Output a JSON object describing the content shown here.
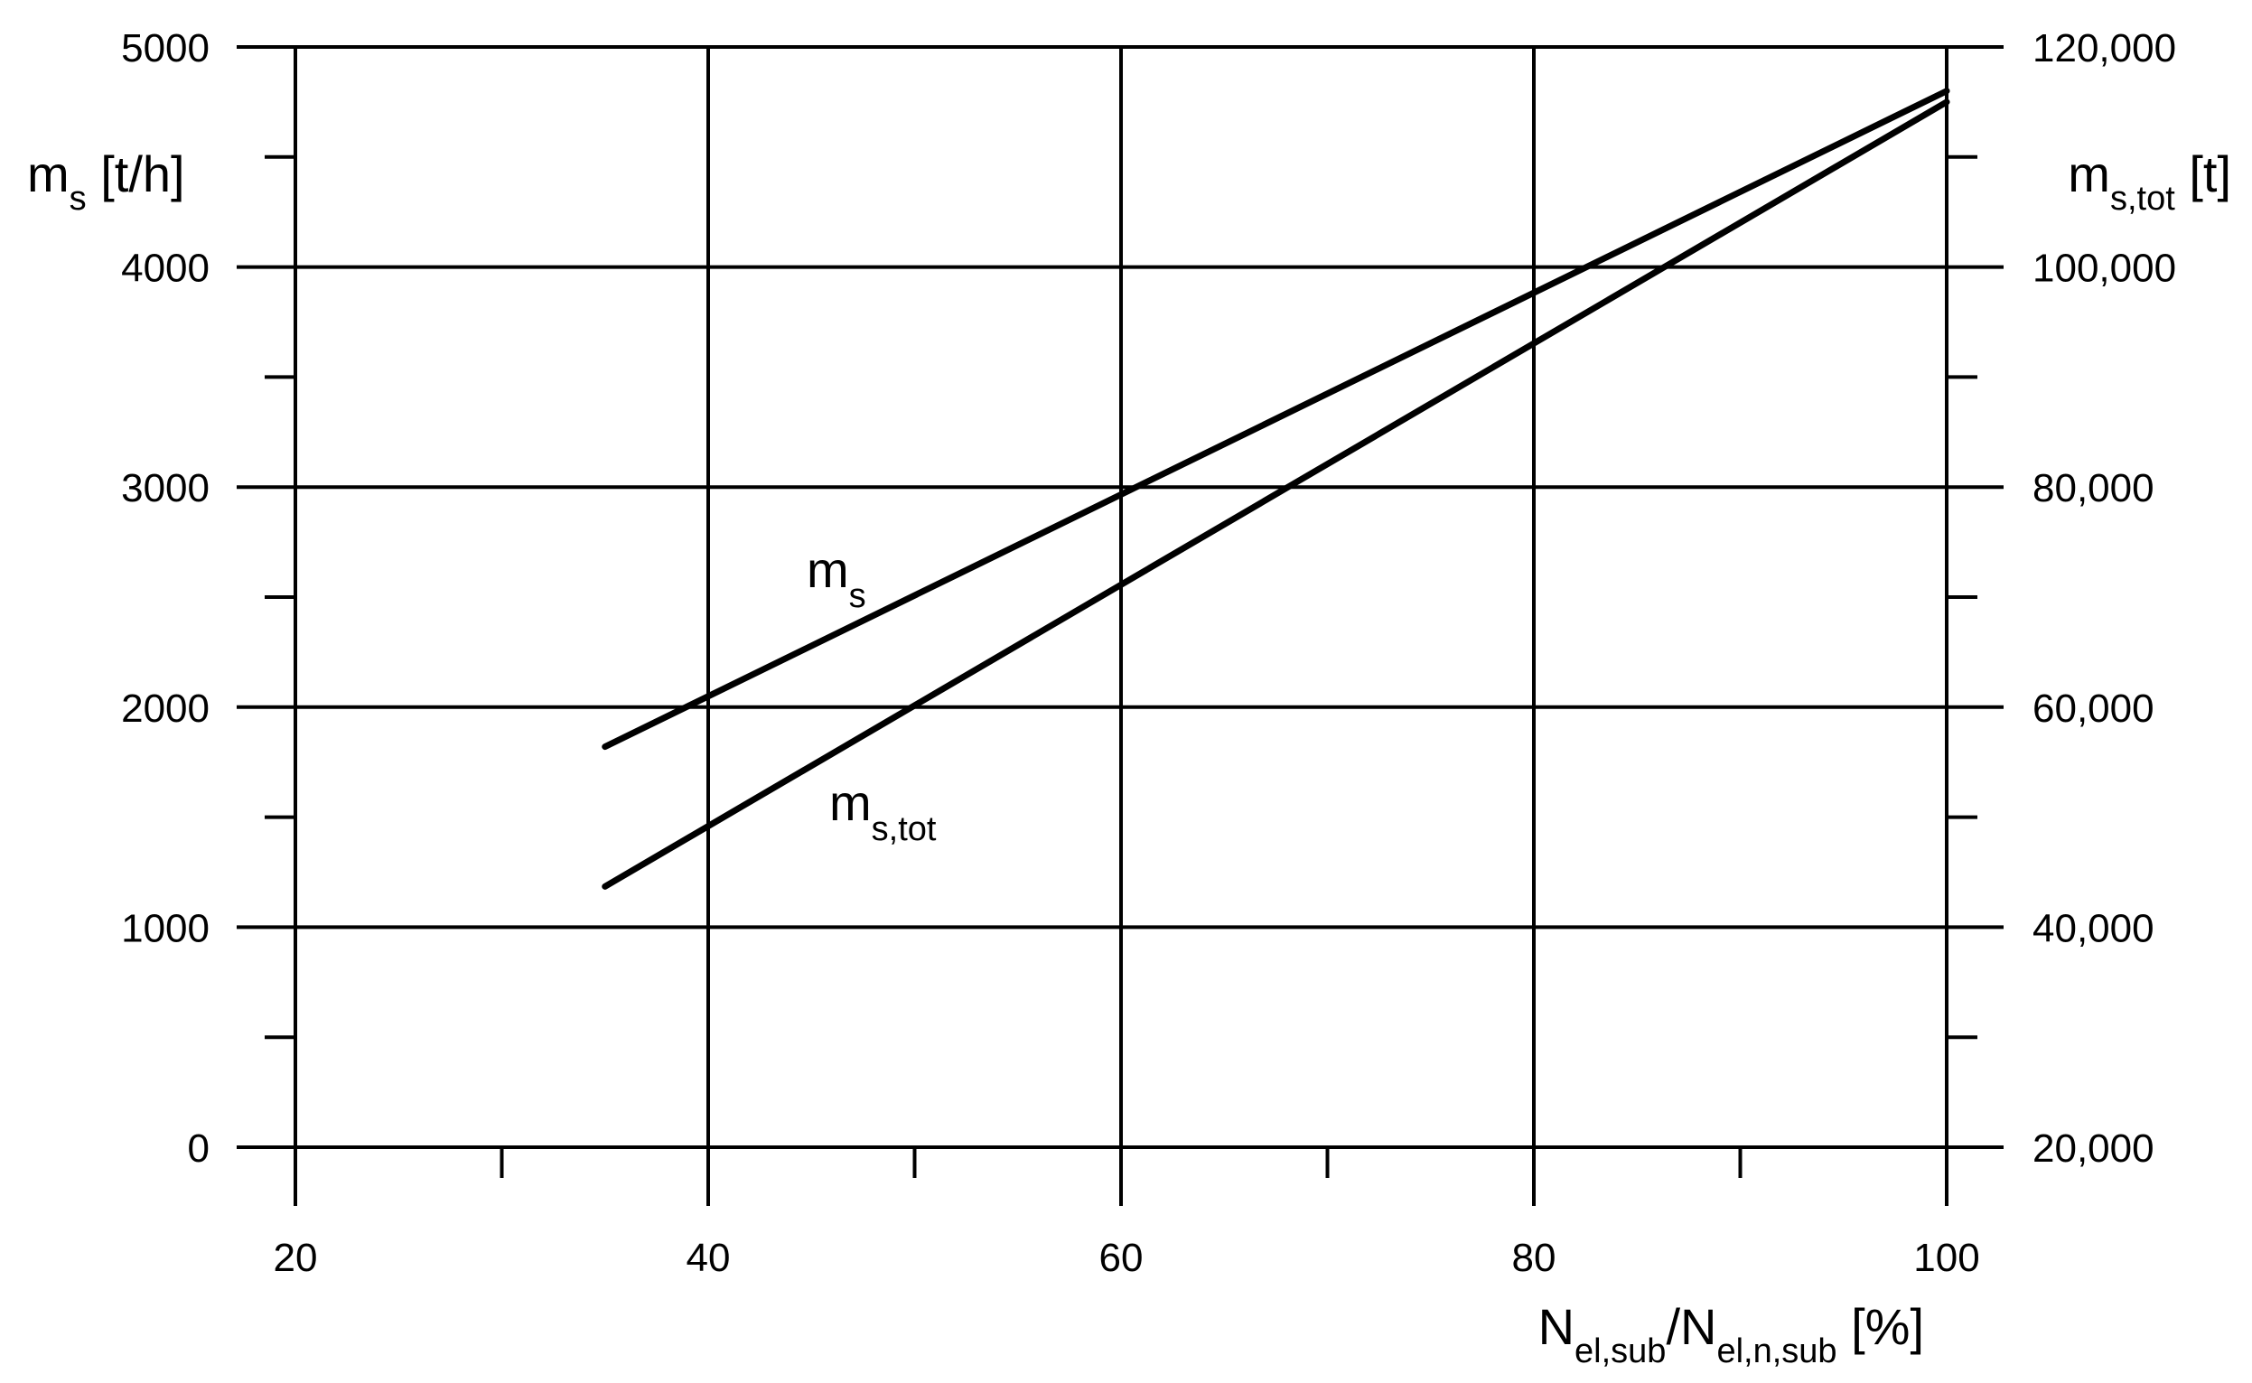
{
  "chart_data": {
    "type": "line",
    "x_axis": {
      "label_parts": [
        {
          "text": "N",
          "sub": false
        },
        {
          "text": "el,sub",
          "sub": true
        },
        {
          "text": "/N",
          "sub": false
        },
        {
          "text": "el,n,sub",
          "sub": true
        },
        {
          "text": " [%]",
          "sub": false
        }
      ],
      "range": [
        20,
        100
      ],
      "ticks": [
        20,
        40,
        60,
        80,
        100
      ],
      "tick_labels": [
        "20",
        "40",
        "60",
        "80",
        "100"
      ],
      "minor_ticks": [
        30,
        50,
        70,
        90
      ]
    },
    "y_left": {
      "label_parts": [
        {
          "text": "m",
          "sub": false
        },
        {
          "text": "s",
          "sub": true
        },
        {
          "text": " [t/h]",
          "sub": false
        }
      ],
      "range": [
        0,
        5000
      ],
      "ticks": [
        0,
        1000,
        2000,
        3000,
        4000,
        5000
      ],
      "tick_labels": [
        "0",
        "1000",
        "2000",
        "3000",
        "4000",
        "5000"
      ],
      "minor_ticks": [
        500,
        1500,
        2500,
        3500,
        4500
      ]
    },
    "y_right": {
      "label_parts": [
        {
          "text": "m",
          "sub": false
        },
        {
          "text": "s,tot",
          "sub": true
        },
        {
          "text": " [t]",
          "sub": false
        }
      ],
      "range": [
        20000,
        120000
      ],
      "ticks": [
        20000,
        40000,
        60000,
        80000,
        100000,
        120000
      ],
      "tick_labels": [
        "20,000",
        "40,000",
        "60,000",
        "80,000",
        "100,000",
        "120,000"
      ],
      "minor_ticks": [
        30000,
        50000,
        70000,
        90000,
        110000
      ]
    },
    "grid": true,
    "series": [
      {
        "axis": "left",
        "label_parts": [
          {
            "text": "m",
            "sub": false
          },
          {
            "text": "s",
            "sub": true
          }
        ],
        "x": [
          35,
          100
        ],
        "y": [
          1820,
          4800
        ]
      },
      {
        "axis": "right",
        "label_parts": [
          {
            "text": "m",
            "sub": false
          },
          {
            "text": "s,tot",
            "sub": true
          }
        ],
        "x": [
          35,
          100
        ],
        "y": [
          43700,
          115000
        ]
      }
    ]
  }
}
